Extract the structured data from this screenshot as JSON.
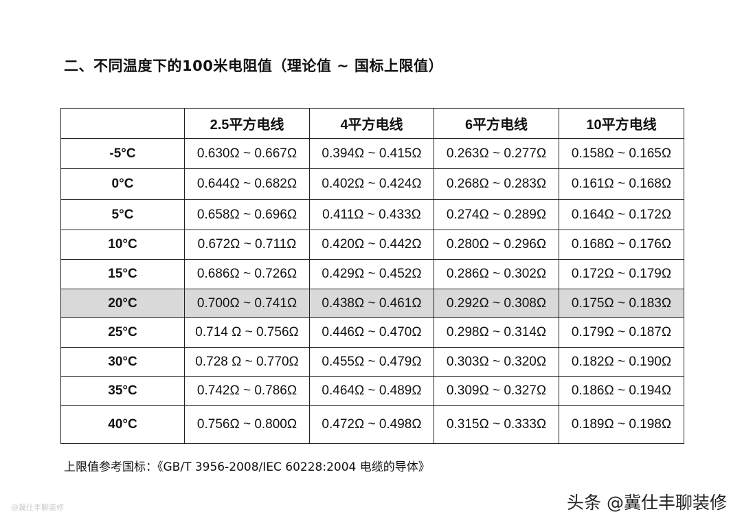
{
  "title": "二、不同温度下的100米电阻值（理论值 ~ 国标上限值）",
  "table": {
    "headers": [
      "",
      "2.5平方电线",
      "4平方电线",
      "6平方电线",
      "10平方电线"
    ],
    "highlight_row": "20°C",
    "highlight_color": "#d9d9d9",
    "rows": [
      {
        "temp": "-5°C",
        "cells": [
          "0.630Ω ~ 0.667Ω",
          "0.394Ω ~ 0.415Ω",
          "0.263Ω ~ 0.277Ω",
          "0.158Ω ~ 0.165Ω"
        ]
      },
      {
        "temp": "0°C",
        "cells": [
          "0.644Ω ~ 0.682Ω",
          "0.402Ω ~ 0.424Ω",
          "0.268Ω ~ 0.283Ω",
          "0.161Ω ~ 0.168Ω"
        ]
      },
      {
        "temp": "5°C",
        "cells": [
          "0.658Ω ~ 0.696Ω",
          "0.411Ω ~ 0.433Ω",
          "0.274Ω ~ 0.289Ω",
          "0.164Ω ~ 0.172Ω"
        ]
      },
      {
        "temp": "10°C",
        "cells": [
          "0.672Ω ~ 0.711Ω",
          "0.420Ω ~ 0.442Ω",
          "0.280Ω ~ 0.296Ω",
          "0.168Ω ~ 0.176Ω"
        ]
      },
      {
        "temp": "15°C",
        "cells": [
          "0.686Ω ~ 0.726Ω",
          "0.429Ω ~ 0.452Ω",
          "0.286Ω ~ 0.302Ω",
          "0.172Ω ~ 0.179Ω"
        ]
      },
      {
        "temp": "20°C",
        "cells": [
          "0.700Ω ~ 0.741Ω",
          "0.438Ω ~ 0.461Ω",
          "0.292Ω ~ 0.308Ω",
          "0.175Ω ~ 0.183Ω"
        ]
      },
      {
        "temp": "25°C",
        "cells": [
          "0.714 Ω ~ 0.756Ω",
          "0.446Ω ~ 0.470Ω",
          "0.298Ω ~ 0.314Ω",
          "0.179Ω ~ 0.187Ω"
        ]
      },
      {
        "temp": "30°C",
        "cells": [
          "0.728 Ω ~ 0.770Ω",
          "0.455Ω ~ 0.479Ω",
          "0.303Ω ~ 0.320Ω",
          "0.182Ω ~ 0.190Ω"
        ]
      },
      {
        "temp": "35°C",
        "cells": [
          "0.742Ω ~ 0.786Ω",
          "0.464Ω ~ 0.489Ω",
          "0.309Ω ~ 0.327Ω",
          "0.186Ω ~ 0.194Ω"
        ]
      },
      {
        "temp": "40°C",
        "cells": [
          "0.756Ω ~ 0.800Ω",
          "0.472Ω ~ 0.498Ω",
          "0.315Ω ~ 0.333Ω",
          "0.189Ω ~ 0.198Ω"
        ]
      }
    ]
  },
  "note": "上限值参考国标：《GB/T 3956-2008/IEC 60228:2004  电缆的导体》",
  "watermark_right": "头条 @冀仕丰聊装修",
  "watermark_left": "@冀仕丰聊装修"
}
